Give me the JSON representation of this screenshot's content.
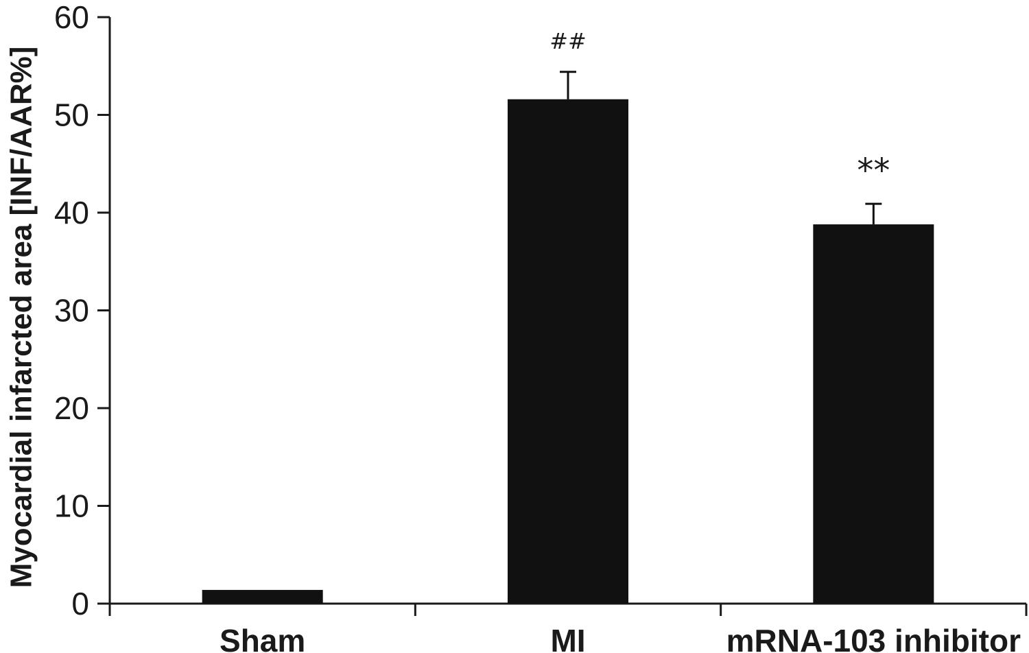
{
  "chart_data": {
    "type": "bar",
    "categories": [
      "Sham",
      "MI",
      "mRNA-103 inhibitor"
    ],
    "values": [
      1.4,
      51.6,
      38.8
    ],
    "error_upper": [
      1.4,
      54.4,
      40.9
    ],
    "annotations": [
      "",
      "##",
      "**"
    ],
    "ylabel": "Myocardial infarcted area [INF/AAR%]",
    "xlabel": "",
    "title": "",
    "ylim": [
      0,
      60
    ],
    "yticks": [
      "0",
      "10",
      "20",
      "30",
      "40",
      "50",
      "60"
    ],
    "grid": false,
    "bar_color": "#111111"
  }
}
